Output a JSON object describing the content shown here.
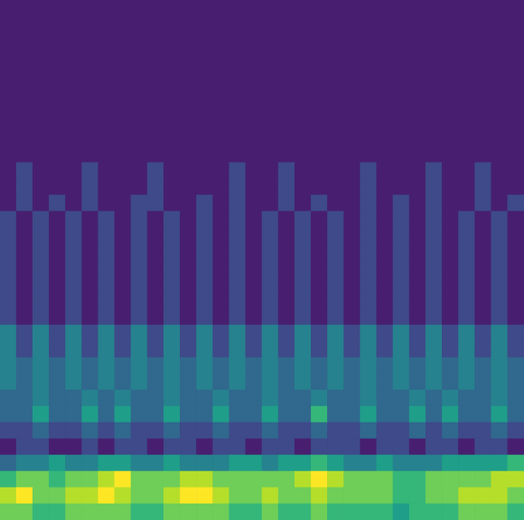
{
  "chart_data": {
    "type": "heatmap",
    "grid": false,
    "tick_labels": false,
    "zlim": [
      0,
      8
    ],
    "cells": [
      [
        0,
        0,
        0,
        0,
        0,
        0,
        0,
        0,
        0,
        0,
        0,
        0,
        0,
        0,
        0,
        0,
        0,
        0,
        0,
        0,
        0,
        0,
        0,
        0,
        0,
        0,
        0,
        0,
        0,
        0,
        0,
        0
      ],
      [
        0,
        0,
        0,
        0,
        0,
        0,
        0,
        0,
        0,
        0,
        0,
        0,
        0,
        0,
        0,
        0,
        0,
        0,
        0,
        0,
        0,
        0,
        0,
        0,
        0,
        0,
        0,
        0,
        0,
        0,
        0,
        0
      ],
      [
        0,
        0,
        0,
        0,
        0,
        0,
        0,
        0,
        0,
        0,
        0,
        0,
        0,
        0,
        0,
        0,
        0,
        0,
        0,
        0,
        0,
        0,
        0,
        0,
        0,
        0,
        0,
        0,
        0,
        0,
        0,
        0
      ],
      [
        0,
        0,
        0,
        0,
        0,
        0,
        0,
        0,
        0,
        0,
        0,
        0,
        0,
        0,
        0,
        0,
        0,
        0,
        0,
        0,
        0,
        0,
        0,
        0,
        0,
        0,
        0,
        0,
        0,
        0,
        0,
        0
      ],
      [
        0,
        0,
        0,
        0,
        0,
        0,
        0,
        0,
        0,
        0,
        0,
        0,
        0,
        0,
        0,
        0,
        0,
        0,
        0,
        0,
        0,
        0,
        0,
        0,
        0,
        0,
        0,
        0,
        0,
        0,
        0,
        0
      ],
      [
        0,
        0,
        0,
        0,
        0,
        0,
        0,
        0,
        0,
        0,
        0,
        0,
        0,
        0,
        0,
        0,
        0,
        0,
        0,
        0,
        0,
        0,
        0,
        0,
        0,
        0,
        0,
        0,
        0,
        0,
        0,
        0
      ],
      [
        0,
        0,
        0,
        0,
        0,
        0,
        0,
        0,
        0,
        0,
        0,
        0,
        0,
        0,
        0,
        0,
        0,
        0,
        0,
        0,
        0,
        0,
        0,
        0,
        0,
        0,
        0,
        0,
        0,
        0,
        0,
        0
      ],
      [
        0,
        0,
        0,
        0,
        0,
        0,
        0,
        0,
        0,
        0,
        0,
        0,
        0,
        0,
        0,
        0,
        0,
        0,
        0,
        0,
        0,
        0,
        0,
        0,
        0,
        0,
        0,
        0,
        0,
        0,
        0,
        0
      ],
      [
        0,
        0,
        0,
        0,
        0,
        0,
        0,
        0,
        0,
        0,
        0,
        0,
        0,
        0,
        0,
        0,
        0,
        0,
        0,
        0,
        0,
        0,
        0,
        0,
        0,
        0,
        0,
        0,
        0,
        0,
        0,
        0
      ],
      [
        0,
        0,
        0,
        0,
        0,
        0,
        0,
        0,
        0,
        0,
        0,
        0,
        0,
        0,
        0,
        0,
        0,
        0,
        0,
        0,
        0,
        0,
        0,
        0,
        0,
        0,
        0,
        0,
        0,
        0,
        0,
        0
      ],
      [
        0,
        1,
        0,
        0,
        0,
        1,
        0,
        0,
        0,
        1,
        0,
        0,
        0,
        0,
        1,
        0,
        0,
        1,
        0,
        0,
        0,
        0,
        1,
        0,
        0,
        0,
        1,
        0,
        0,
        1,
        0,
        0
      ],
      [
        0,
        1,
        0,
        0,
        0,
        1,
        0,
        0,
        0,
        1,
        0,
        0,
        0,
        0,
        1,
        0,
        0,
        1,
        0,
        0,
        0,
        0,
        1,
        0,
        0,
        0,
        1,
        0,
        0,
        1,
        0,
        0
      ],
      [
        0,
        1,
        0,
        1,
        0,
        1,
        0,
        0,
        1,
        1,
        0,
        0,
        1,
        0,
        1,
        0,
        0,
        1,
        0,
        1,
        0,
        0,
        1,
        0,
        1,
        0,
        1,
        0,
        0,
        1,
        0,
        1
      ],
      [
        1,
        0,
        1,
        0,
        1,
        0,
        1,
        0,
        1,
        0,
        1,
        0,
        1,
        0,
        1,
        0,
        1,
        0,
        1,
        0,
        1,
        0,
        1,
        0,
        1,
        0,
        1,
        0,
        1,
        0,
        1,
        0
      ],
      [
        1,
        0,
        1,
        0,
        1,
        0,
        1,
        0,
        1,
        0,
        1,
        0,
        1,
        0,
        1,
        0,
        1,
        0,
        1,
        0,
        1,
        0,
        1,
        0,
        1,
        0,
        1,
        0,
        1,
        0,
        1,
        0
      ],
      [
        1,
        0,
        1,
        0,
        1,
        0,
        1,
        0,
        1,
        0,
        1,
        0,
        1,
        0,
        1,
        0,
        1,
        0,
        1,
        0,
        1,
        0,
        1,
        0,
        1,
        0,
        1,
        0,
        1,
        0,
        1,
        0
      ],
      [
        1,
        0,
        1,
        0,
        1,
        0,
        1,
        0,
        1,
        0,
        1,
        0,
        1,
        0,
        1,
        0,
        1,
        0,
        1,
        0,
        1,
        0,
        1,
        0,
        1,
        0,
        1,
        0,
        1,
        0,
        1,
        0
      ],
      [
        1,
        0,
        1,
        0,
        1,
        0,
        1,
        0,
        1,
        0,
        1,
        0,
        1,
        0,
        1,
        0,
        1,
        0,
        1,
        0,
        1,
        0,
        1,
        0,
        1,
        0,
        1,
        0,
        1,
        0,
        1,
        0
      ],
      [
        1,
        0,
        1,
        0,
        1,
        0,
        1,
        0,
        1,
        0,
        1,
        0,
        1,
        0,
        1,
        0,
        1,
        0,
        1,
        0,
        1,
        0,
        1,
        0,
        1,
        0,
        1,
        0,
        1,
        0,
        1,
        0
      ],
      [
        1,
        0,
        1,
        0,
        1,
        0,
        1,
        0,
        1,
        0,
        1,
        0,
        1,
        0,
        1,
        0,
        1,
        0,
        1,
        0,
        1,
        0,
        1,
        0,
        1,
        0,
        1,
        0,
        1,
        0,
        1,
        0
      ],
      [
        3,
        1,
        3,
        1,
        3,
        1,
        3,
        1,
        3,
        1,
        3,
        1,
        3,
        1,
        3,
        1,
        3,
        1,
        3,
        1,
        3,
        1,
        3,
        1,
        3,
        1,
        3,
        1,
        3,
        1,
        3,
        1
      ],
      [
        3,
        1,
        3,
        1,
        3,
        1,
        3,
        1,
        3,
        1,
        3,
        1,
        3,
        1,
        3,
        1,
        3,
        1,
        3,
        1,
        3,
        1,
        3,
        1,
        3,
        1,
        3,
        1,
        3,
        1,
        3,
        1
      ],
      [
        3,
        2,
        3,
        2,
        3,
        2,
        3,
        2,
        3,
        2,
        3,
        2,
        3,
        2,
        3,
        2,
        3,
        2,
        3,
        2,
        3,
        2,
        3,
        2,
        3,
        2,
        3,
        2,
        3,
        2,
        3,
        2
      ],
      [
        3,
        2,
        3,
        2,
        3,
        2,
        3,
        2,
        3,
        2,
        3,
        2,
        3,
        2,
        3,
        2,
        3,
        2,
        3,
        2,
        3,
        2,
        3,
        2,
        3,
        2,
        3,
        2,
        3,
        2,
        3,
        2
      ],
      [
        2,
        2,
        3,
        2,
        2,
        3,
        2,
        3,
        2,
        2,
        3,
        2,
        2,
        3,
        2,
        2,
        3,
        2,
        2,
        3,
        2,
        2,
        3,
        2,
        2,
        3,
        2,
        3,
        2,
        2,
        3,
        2
      ],
      [
        2,
        2,
        4,
        2,
        2,
        4,
        2,
        4,
        2,
        2,
        4,
        2,
        2,
        4,
        2,
        2,
        4,
        2,
        2,
        5,
        2,
        2,
        4,
        2,
        2,
        4,
        2,
        4,
        2,
        2,
        4,
        2
      ],
      [
        1,
        1,
        2,
        1,
        1,
        2,
        1,
        2,
        1,
        1,
        2,
        1,
        1,
        2,
        1,
        1,
        2,
        1,
        1,
        2,
        1,
        1,
        2,
        1,
        1,
        2,
        1,
        2,
        1,
        1,
        2,
        1
      ],
      [
        0,
        1,
        1,
        0,
        0,
        1,
        0,
        1,
        1,
        0,
        1,
        1,
        0,
        1,
        1,
        0,
        1,
        1,
        0,
        1,
        1,
        1,
        0,
        1,
        1,
        0,
        1,
        1,
        0,
        1,
        1,
        0
      ],
      [
        2,
        3,
        3,
        4,
        3,
        3,
        4,
        4,
        3,
        3,
        4,
        3,
        3,
        3,
        4,
        4,
        3,
        4,
        4,
        5,
        4,
        3,
        3,
        4,
        3,
        3,
        3,
        4,
        4,
        4,
        4,
        5
      ],
      [
        5,
        6,
        6,
        5,
        6,
        6,
        7,
        8,
        6,
        6,
        6,
        7,
        7,
        6,
        6,
        6,
        6,
        6,
        7,
        8,
        7,
        6,
        6,
        6,
        5,
        5,
        6,
        6,
        6,
        6,
        7,
        7
      ],
      [
        7,
        8,
        6,
        6,
        7,
        7,
        8,
        7,
        6,
        6,
        7,
        8,
        8,
        7,
        6,
        6,
        7,
        6,
        6,
        7,
        6,
        6,
        6,
        6,
        5,
        5,
        6,
        6,
        7,
        7,
        7,
        6
      ],
      [
        6,
        6,
        5,
        5,
        6,
        6,
        6,
        6,
        5,
        5,
        6,
        6,
        6,
        6,
        5,
        5,
        6,
        5,
        5,
        6,
        5,
        5,
        5,
        5,
        4,
        5,
        5,
        5,
        6,
        6,
        6,
        5
      ]
    ]
  }
}
